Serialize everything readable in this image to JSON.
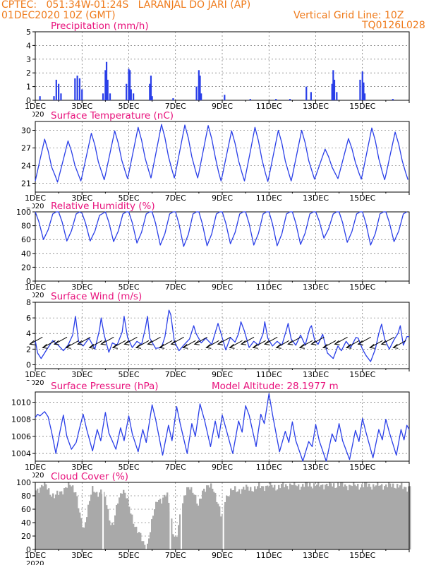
{
  "header": {
    "line1_left": "CPTEC:   051:34W-01:24S   LARANJAL DO JARI (AP)",
    "line2_left": "01DEC2020 10Z (GMT)",
    "line2_right": "Vertical Grid Line: 10Z",
    "line3_right": "TQ0126L028",
    "model_altitude": "Model Altitude: 28.1977 m",
    "year_fragment": "2020",
    "orange": "#ef7a1a",
    "magenta": "#e8127c",
    "series_blue": "#2a3fe8",
    "cloud_gray": "#a9a9a9"
  },
  "chart_data": [
    {
      "type": "bar",
      "title": "Precipitation (mm/h)",
      "ylim": [
        0,
        5
      ],
      "yticks": [
        "0",
        "1",
        "2",
        "3",
        "4",
        "5"
      ],
      "xticks": [
        "1DEC",
        "3DEC",
        "5DEC",
        "7DEC",
        "9DEC",
        "11DEC",
        "13DEC",
        "15DEC"
      ],
      "x_unit": "days since 01DEC2020 10Z",
      "values_points": [
        [
          0.2,
          0.3
        ],
        [
          0.8,
          0.3
        ],
        [
          0.9,
          1.5
        ],
        [
          1.0,
          1.2
        ],
        [
          1.1,
          0.5
        ],
        [
          1.7,
          1.6
        ],
        [
          1.8,
          1.8
        ],
        [
          1.9,
          1.6
        ],
        [
          2.0,
          0.8
        ],
        [
          2.9,
          0.5
        ],
        [
          3.0,
          2.2
        ],
        [
          3.05,
          2.8
        ],
        [
          3.1,
          1.5
        ],
        [
          3.2,
          0.5
        ],
        [
          3.9,
          1.2
        ],
        [
          4.0,
          2.3
        ],
        [
          4.05,
          2.2
        ],
        [
          4.1,
          0.8
        ],
        [
          4.2,
          0.5
        ],
        [
          4.9,
          1.2
        ],
        [
          4.95,
          1.8
        ],
        [
          5.0,
          0.3
        ],
        [
          5.9,
          0.15
        ],
        [
          6.9,
          1.0
        ],
        [
          7.0,
          2.2
        ],
        [
          7.05,
          1.8
        ],
        [
          7.1,
          0.5
        ],
        [
          8.1,
          0.4
        ],
        [
          9.2,
          0.1
        ],
        [
          10.3,
          0.1
        ],
        [
          10.9,
          0.1
        ],
        [
          11.6,
          1.0
        ],
        [
          11.8,
          0.6
        ],
        [
          12.7,
          1.2
        ],
        [
          12.75,
          2.2
        ],
        [
          12.8,
          1.5
        ],
        [
          12.9,
          0.6
        ],
        [
          13.9,
          1.5
        ],
        [
          14.0,
          2.1
        ],
        [
          14.05,
          1.3
        ],
        [
          14.1,
          0.5
        ],
        [
          15.3,
          0.1
        ]
      ]
    },
    {
      "type": "line",
      "title": "Surface Temperature (nC)",
      "ylim": [
        19.5,
        31.5
      ],
      "yticks": [
        "21",
        "24",
        "27",
        "30"
      ],
      "xticks": [
        "1DEC",
        "3DEC",
        "5DEC",
        "7DEC",
        "9DEC",
        "11DEC",
        "13DEC",
        "15DEC"
      ],
      "x_unit": "days since 01DEC2020 10Z",
      "daily_max": [
        28.5,
        28.2,
        29.5,
        29.9,
        30.5,
        31.0,
        30.9,
        30.8,
        29.9,
        30.5,
        30.0,
        30.0,
        26.8,
        28.6,
        30.4,
        29.7
      ],
      "daily_min": [
        20.6,
        21.2,
        21.4,
        21.6,
        21.8,
        21.9,
        21.9,
        21.9,
        21.4,
        21.4,
        21.3,
        21.4,
        21.7,
        21.8,
        21.7,
        21.6
      ]
    },
    {
      "type": "line",
      "title": "Relative Humidity (%)",
      "ylim": [
        0,
        100
      ],
      "yticks": [
        "0",
        "20",
        "40",
        "60",
        "80",
        "100"
      ],
      "xticks": [
        "1DEC",
        "3DEC",
        "5DEC",
        "7DEC",
        "9DEC",
        "11DEC",
        "13DEC",
        "15DEC"
      ],
      "x_unit": "days since 01DEC2020 10Z",
      "daily_max": [
        100,
        100,
        98,
        100,
        100,
        100,
        100,
        100,
        100,
        100,
        100,
        100,
        100,
        100,
        100,
        100
      ],
      "daily_min": [
        60,
        58,
        58,
        57,
        55,
        52,
        50,
        51,
        54,
        52,
        51,
        53,
        62,
        56,
        52,
        57
      ]
    },
    {
      "type": "line",
      "title": "Surface Wind (m/s)",
      "ylim": [
        -0.5,
        8
      ],
      "yticks": [
        "0",
        "2",
        "4",
        "6",
        "8"
      ],
      "xticks": [
        "1DEC",
        "3DEC",
        "5DEC",
        "7DEC",
        "9DEC",
        "11DEC",
        "13DEC",
        "15DEC"
      ],
      "x_unit": "days since 01DEC2020 10Z",
      "speed_points": [
        [
          0,
          3.1
        ],
        [
          0.1,
          1.5
        ],
        [
          0.25,
          0.8
        ],
        [
          0.5,
          2.0
        ],
        [
          0.75,
          3.1
        ],
        [
          0.95,
          2.6
        ],
        [
          1.2,
          1.8
        ],
        [
          1.4,
          2.5
        ],
        [
          1.6,
          3.8
        ],
        [
          1.72,
          6.2
        ],
        [
          1.85,
          3.0
        ],
        [
          2.05,
          2.4
        ],
        [
          2.3,
          3.4
        ],
        [
          2.55,
          2.0
        ],
        [
          2.75,
          4.5
        ],
        [
          2.82,
          6.0
        ],
        [
          2.95,
          3.8
        ],
        [
          3.15,
          1.6
        ],
        [
          3.3,
          2.8
        ],
        [
          3.5,
          2.5
        ],
        [
          3.72,
          4.2
        ],
        [
          3.8,
          6.2
        ],
        [
          3.95,
          3.5
        ],
        [
          4.15,
          2.2
        ],
        [
          4.35,
          3.0
        ],
        [
          4.55,
          2.6
        ],
        [
          4.72,
          4.8
        ],
        [
          4.8,
          6.2
        ],
        [
          4.9,
          3.4
        ],
        [
          5.15,
          2.1
        ],
        [
          5.4,
          2.2
        ],
        [
          5.55,
          3.6
        ],
        [
          5.72,
          7.0
        ],
        [
          5.8,
          6.4
        ],
        [
          5.95,
          3.0
        ],
        [
          6.15,
          1.8
        ],
        [
          6.35,
          2.5
        ],
        [
          6.6,
          3.3
        ],
        [
          6.78,
          5.0
        ],
        [
          6.88,
          4.0
        ],
        [
          7.1,
          2.8
        ],
        [
          7.3,
          3.4
        ],
        [
          7.55,
          2.6
        ],
        [
          7.75,
          4.6
        ],
        [
          7.82,
          5.3
        ],
        [
          7.95,
          4.0
        ],
        [
          8.15,
          1.9
        ],
        [
          8.35,
          3.5
        ],
        [
          8.55,
          2.9
        ],
        [
          8.7,
          4.0
        ],
        [
          8.8,
          5.5
        ],
        [
          8.95,
          4.3
        ],
        [
          9.15,
          2.2
        ],
        [
          9.35,
          3.0
        ],
        [
          9.55,
          2.5
        ],
        [
          9.75,
          4.0
        ],
        [
          9.82,
          5.5
        ],
        [
          9.95,
          3.4
        ],
        [
          10.15,
          2.4
        ],
        [
          10.35,
          3.0
        ],
        [
          10.55,
          2.5
        ],
        [
          10.75,
          4.5
        ],
        [
          10.82,
          5.3
        ],
        [
          10.95,
          3.3
        ],
        [
          11.15,
          2.5
        ],
        [
          11.35,
          3.8
        ],
        [
          11.55,
          2.5
        ],
        [
          11.75,
          4.7
        ],
        [
          11.82,
          5.0
        ],
        [
          11.95,
          3.2
        ],
        [
          12.1,
          2.6
        ],
        [
          12.3,
          3.9
        ],
        [
          12.5,
          1.5
        ],
        [
          12.75,
          0.8
        ],
        [
          12.95,
          2.4
        ],
        [
          13.1,
          1.8
        ],
        [
          13.3,
          3.0
        ],
        [
          13.5,
          2.2
        ],
        [
          13.72,
          3.5
        ],
        [
          13.82,
          3.4
        ],
        [
          14.0,
          2.0
        ],
        [
          14.15,
          1.2
        ],
        [
          14.35,
          0.4
        ],
        [
          14.55,
          2.0
        ],
        [
          14.7,
          4.0
        ],
        [
          14.82,
          5.2
        ],
        [
          14.95,
          3.3
        ],
        [
          15.15,
          2.0
        ],
        [
          15.35,
          3.2
        ],
        [
          15.52,
          4.0
        ],
        [
          15.62,
          5.0
        ],
        [
          15.75,
          2.5
        ],
        [
          15.9,
          3.6
        ],
        [
          16.0,
          3.6
        ]
      ],
      "arrows_x": [
        0.25,
        0.8,
        1.3,
        1.8,
        2.3,
        2.8,
        3.3,
        3.8,
        4.3,
        4.8,
        5.3,
        5.8,
        6.3,
        6.8,
        7.3,
        7.8,
        8.3,
        8.8,
        9.3,
        9.8,
        10.3,
        10.8,
        11.3,
        11.8,
        12.3,
        12.8,
        13.3,
        13.8,
        14.3,
        14.8,
        15.3,
        15.8
      ]
    },
    {
      "type": "line",
      "title": "Surface Pressure (hPa)",
      "ylim": [
        1003.1,
        1011.2
      ],
      "yticks": [
        "1004",
        "1006",
        "1008",
        "1010"
      ],
      "xticks": [
        "1DEC",
        "3DEC",
        "5DEC",
        "7DEC",
        "9DEC",
        "11DEC",
        "13DEC",
        "15DEC"
      ],
      "x_unit": "days since 01DEC2020 10Z",
      "pressure_points": [
        [
          0,
          1008.2
        ],
        [
          0.1,
          1008.6
        ],
        [
          0.2,
          1008.4
        ],
        [
          0.4,
          1008.9
        ],
        [
          0.55,
          1008.3
        ],
        [
          0.7,
          1006.5
        ],
        [
          0.88,
          1004.0
        ],
        [
          1.05,
          1006.5
        ],
        [
          1.2,
          1008.5
        ],
        [
          1.35,
          1006.0
        ],
        [
          1.55,
          1004.5
        ],
        [
          1.75,
          1005.3
        ],
        [
          1.9,
          1007.0
        ],
        [
          2.05,
          1008.6
        ],
        [
          2.2,
          1006.8
        ],
        [
          2.45,
          1004.3
        ],
        [
          2.65,
          1006.8
        ],
        [
          2.8,
          1005.5
        ],
        [
          3.0,
          1008.8
        ],
        [
          3.15,
          1006.4
        ],
        [
          3.45,
          1004.5
        ],
        [
          3.65,
          1007.0
        ],
        [
          3.8,
          1005.5
        ],
        [
          4.0,
          1008.4
        ],
        [
          4.15,
          1006.3
        ],
        [
          4.4,
          1004.2
        ],
        [
          4.6,
          1006.8
        ],
        [
          4.75,
          1005.3
        ],
        [
          5.0,
          1009.7
        ],
        [
          5.15,
          1008.0
        ],
        [
          5.45,
          1003.8
        ],
        [
          5.7,
          1007.3
        ],
        [
          5.85,
          1005.5
        ],
        [
          6.05,
          1009.5
        ],
        [
          6.2,
          1007.5
        ],
        [
          6.5,
          1004.0
        ],
        [
          6.7,
          1007.5
        ],
        [
          6.85,
          1006.0
        ],
        [
          7.05,
          1009.8
        ],
        [
          7.25,
          1007.8
        ],
        [
          7.5,
          1004.8
        ],
        [
          7.7,
          1007.8
        ],
        [
          7.85,
          1005.8
        ],
        [
          8.0,
          1008.5
        ],
        [
          8.15,
          1007.0
        ],
        [
          8.45,
          1004.0
        ],
        [
          8.7,
          1007.8
        ],
        [
          8.85,
          1006.5
        ],
        [
          9.0,
          1009.6
        ],
        [
          9.15,
          1008.5
        ],
        [
          9.45,
          1004.8
        ],
        [
          9.65,
          1008.6
        ],
        [
          9.8,
          1007.5
        ],
        [
          10.0,
          1011.0
        ],
        [
          10.15,
          1008.6
        ],
        [
          10.45,
          1004.2
        ],
        [
          10.7,
          1006.6
        ],
        [
          10.85,
          1005.3
        ],
        [
          11.0,
          1007.7
        ],
        [
          11.15,
          1005.5
        ],
        [
          11.45,
          1003.1
        ],
        [
          11.7,
          1005.4
        ],
        [
          11.85,
          1004.8
        ],
        [
          12.0,
          1007.4
        ],
        [
          12.15,
          1005.5
        ],
        [
          12.45,
          1003.1
        ],
        [
          12.7,
          1006.3
        ],
        [
          12.85,
          1005.4
        ],
        [
          13.0,
          1007.5
        ],
        [
          13.15,
          1005.5
        ],
        [
          13.45,
          1003.3
        ],
        [
          13.7,
          1006.7
        ],
        [
          13.85,
          1005.4
        ],
        [
          14.0,
          1008.1
        ],
        [
          14.15,
          1006.5
        ],
        [
          14.45,
          1003.5
        ],
        [
          14.7,
          1006.8
        ],
        [
          14.85,
          1005.6
        ],
        [
          15.0,
          1008.0
        ],
        [
          15.15,
          1006.5
        ],
        [
          15.45,
          1003.8
        ],
        [
          15.65,
          1006.8
        ],
        [
          15.78,
          1005.6
        ],
        [
          15.9,
          1007.3
        ],
        [
          16.0,
          1006.8
        ]
      ]
    },
    {
      "type": "area",
      "title": "Cloud Cover (%)",
      "ylim": [
        0,
        100
      ],
      "yticks": [
        "0",
        "20",
        "40",
        "60",
        "80",
        "100"
      ],
      "xticks": [
        "1DEC",
        "3DEC",
        "5DEC",
        "7DEC",
        "9DEC",
        "11DEC",
        "13DEC",
        "15DEC"
      ],
      "x_unit": "days since 01DEC2020 10Z",
      "cloud_points": [
        [
          0,
          88
        ],
        [
          0.15,
          92
        ],
        [
          0.35,
          98
        ],
        [
          0.6,
          86
        ],
        [
          0.8,
          78
        ],
        [
          1.05,
          86
        ],
        [
          1.25,
          92
        ],
        [
          1.5,
          96
        ],
        [
          1.7,
          88
        ],
        [
          1.9,
          45
        ],
        [
          2.05,
          30
        ],
        [
          2.2,
          60
        ],
        [
          2.4,
          88
        ],
        [
          2.6,
          84
        ],
        [
          2.8,
          88
        ],
        [
          3.0,
          72
        ],
        [
          3.15,
          45
        ],
        [
          3.3,
          35
        ],
        [
          3.5,
          70
        ],
        [
          3.7,
          92
        ],
        [
          3.85,
          80
        ],
        [
          4.0,
          60
        ],
        [
          4.15,
          45
        ],
        [
          4.3,
          30
        ],
        [
          4.45,
          20
        ],
        [
          4.6,
          10
        ],
        [
          4.75,
          4
        ],
        [
          4.9,
          28
        ],
        [
          5.05,
          58
        ],
        [
          5.2,
          78
        ],
        [
          5.4,
          70
        ],
        [
          5.6,
          85
        ],
        [
          5.75,
          60
        ],
        [
          5.85,
          25
        ],
        [
          6.0,
          10
        ],
        [
          6.15,
          50
        ],
        [
          6.35,
          80
        ],
        [
          6.55,
          92
        ],
        [
          6.75,
          88
        ],
        [
          6.95,
          62
        ],
        [
          7.15,
          90
        ],
        [
          7.35,
          96
        ],
        [
          7.6,
          88
        ],
        [
          7.8,
          70
        ],
        [
          7.95,
          45
        ],
        [
          8.1,
          75
        ],
        [
          8.35,
          90
        ],
        [
          8.6,
          86
        ],
        [
          8.85,
          92
        ],
        [
          9.1,
          90
        ],
        [
          9.4,
          92
        ],
        [
          9.7,
          94
        ],
        [
          10.0,
          95
        ],
        [
          10.3,
          93
        ],
        [
          10.6,
          95
        ],
        [
          10.9,
          97
        ],
        [
          11.2,
          95
        ],
        [
          11.5,
          96
        ],
        [
          11.8,
          97
        ],
        [
          12.1,
          95
        ],
        [
          12.4,
          97
        ],
        [
          12.7,
          96
        ],
        [
          13.0,
          97
        ],
        [
          13.3,
          95
        ],
        [
          13.6,
          96
        ],
        [
          13.9,
          95
        ],
        [
          14.2,
          96
        ],
        [
          14.5,
          95
        ],
        [
          14.8,
          96
        ],
        [
          15.1,
          95
        ],
        [
          15.4,
          96
        ],
        [
          15.7,
          92
        ],
        [
          16.0,
          94
        ]
      ],
      "gaps_x": [
        2.9,
        5.78,
        6.25,
        8.05
      ]
    }
  ]
}
